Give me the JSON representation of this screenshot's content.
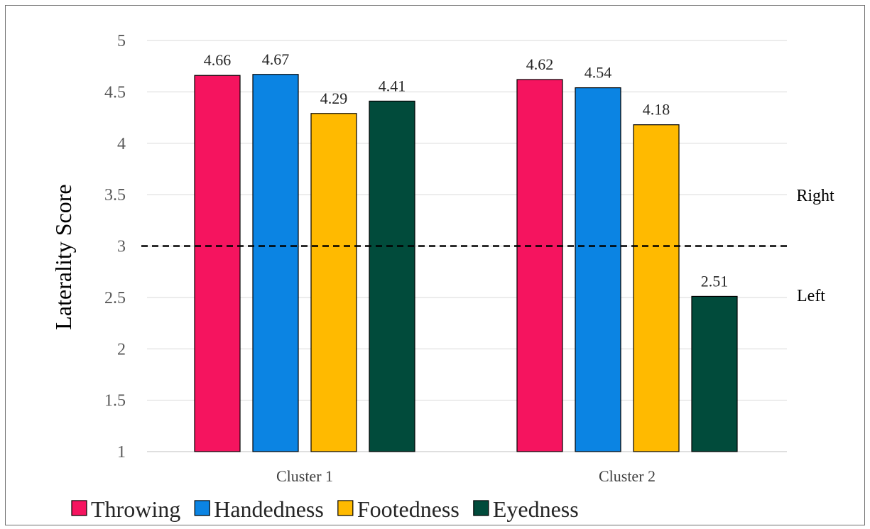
{
  "chart_data": {
    "type": "bar",
    "categories": [
      "Cluster 1",
      "Cluster 2"
    ],
    "series": [
      {
        "name": "Throwing",
        "color": "#f5145f",
        "values": [
          4.66,
          4.62
        ]
      },
      {
        "name": "Handedness",
        "color": "#0b84e3",
        "values": [
          4.67,
          4.54
        ]
      },
      {
        "name": "Footedness",
        "color": "#ffba00",
        "values": [
          4.29,
          4.18
        ]
      },
      {
        "name": "Eyedness",
        "color": "#014b3b",
        "values": [
          4.41,
          2.51
        ]
      }
    ],
    "ylabel": "Laterality Score",
    "ylim": [
      1,
      5
    ],
    "yticks": [
      "1",
      "1.5",
      "2",
      "2.5",
      "3",
      "3.5",
      "4",
      "4.5",
      "5"
    ],
    "reference_line": {
      "y": 3,
      "style": "dashed"
    },
    "annotations": {
      "above": "Right",
      "below": "Left"
    },
    "grid": true,
    "legend_position": "bottom"
  }
}
